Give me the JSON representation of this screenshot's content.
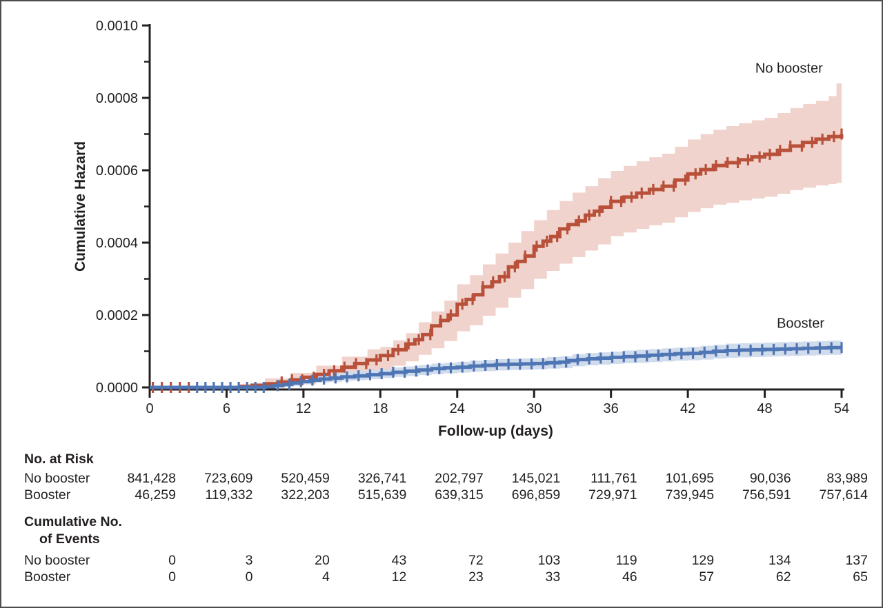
{
  "figure": {
    "background_color": "#ffffff",
    "border_color": "#4d4d4d",
    "text_color": "#231f20"
  },
  "chart_data": {
    "type": "line",
    "subtype": "step-cumulative-hazard-with-confidence-bands",
    "title": "",
    "xlabel": "Follow-up (days)",
    "ylabel": "Cumulative Hazard",
    "xlim": [
      0,
      54
    ],
    "x_ticks": [
      0,
      6,
      12,
      18,
      24,
      30,
      36,
      42,
      48,
      54
    ],
    "y_unit": "hazard x 1e-6 (axis shown as decimals)",
    "ylim_micro": [
      0,
      1000
    ],
    "y_ticks": [
      {
        "value_micro": 0,
        "label": "0.0000"
      },
      {
        "value_micro": 200,
        "label": "0.0002"
      },
      {
        "value_micro": 400,
        "label": "0.0004"
      },
      {
        "value_micro": 600,
        "label": "0.0006"
      },
      {
        "value_micro": 800,
        "label": "0.0008"
      },
      {
        "value_micro": 1000,
        "label": "0.0010"
      }
    ],
    "y_minor_ticks_micro": [
      100,
      300,
      500,
      700,
      900
    ],
    "grid": false,
    "legend_position": "labels-at-line-ends",
    "series": [
      {
        "name": "No booster",
        "line_color": "#b8503a",
        "band_color": "#f0d3cc",
        "label_anchor": {
          "x_day": 49.9,
          "y_micro": 870
        },
        "points_day_micro": [
          [
            0,
            0
          ],
          [
            7,
            3
          ],
          [
            8,
            6
          ],
          [
            9,
            10
          ],
          [
            10,
            15
          ],
          [
            11,
            21
          ],
          [
            12,
            28
          ],
          [
            13,
            36
          ],
          [
            14,
            46
          ],
          [
            15,
            56
          ],
          [
            16,
            66
          ],
          [
            17,
            76
          ],
          [
            18,
            88
          ],
          [
            19,
            104
          ],
          [
            20,
            120
          ],
          [
            20.7,
            132
          ],
          [
            21.3,
            146
          ],
          [
            22,
            170
          ],
          [
            22.7,
            185
          ],
          [
            23.3,
            200
          ],
          [
            24,
            230
          ],
          [
            24.7,
            243
          ],
          [
            25.3,
            256
          ],
          [
            26,
            278
          ],
          [
            26.7,
            292
          ],
          [
            27.3,
            306
          ],
          [
            28,
            333
          ],
          [
            28.7,
            348
          ],
          [
            29.3,
            363
          ],
          [
            30,
            390
          ],
          [
            30.7,
            404
          ],
          [
            31.3,
            417
          ],
          [
            32,
            438
          ],
          [
            32.7,
            450
          ],
          [
            33.3,
            460
          ],
          [
            34,
            476
          ],
          [
            34.7,
            487
          ],
          [
            35.3,
            498
          ],
          [
            36,
            514
          ],
          [
            37,
            526
          ],
          [
            38,
            537
          ],
          [
            39,
            547
          ],
          [
            40,
            556
          ],
          [
            41,
            573
          ],
          [
            42,
            590
          ],
          [
            43,
            602
          ],
          [
            44,
            613
          ],
          [
            45,
            621
          ],
          [
            46,
            629
          ],
          [
            47,
            637
          ],
          [
            48,
            644
          ],
          [
            49,
            655
          ],
          [
            50,
            667
          ],
          [
            51,
            677
          ],
          [
            52,
            686
          ],
          [
            53,
            693
          ],
          [
            54,
            700
          ]
        ],
        "band_day_lo_hi_micro": [
          [
            9,
            2,
            25
          ],
          [
            11,
            8,
            40
          ],
          [
            13,
            18,
            60
          ],
          [
            15,
            30,
            85
          ],
          [
            17,
            42,
            105
          ],
          [
            18,
            50,
            112
          ],
          [
            19,
            60,
            130
          ],
          [
            20,
            72,
            150
          ],
          [
            21,
            90,
            180
          ],
          [
            22,
            108,
            210
          ],
          [
            23,
            128,
            240
          ],
          [
            24,
            155,
            285
          ],
          [
            25,
            172,
            310
          ],
          [
            26,
            198,
            340
          ],
          [
            27,
            220,
            370
          ],
          [
            28,
            248,
            400
          ],
          [
            29,
            272,
            432
          ],
          [
            30,
            300,
            462
          ],
          [
            31,
            322,
            490
          ],
          [
            32,
            342,
            515
          ],
          [
            33,
            360,
            538
          ],
          [
            34,
            378,
            556
          ],
          [
            35,
            395,
            578
          ],
          [
            36,
            418,
            598
          ],
          [
            37,
            428,
            612
          ],
          [
            38,
            438,
            625
          ],
          [
            39,
            448,
            636
          ],
          [
            40,
            455,
            646
          ],
          [
            41,
            470,
            665
          ],
          [
            42,
            485,
            685
          ],
          [
            43,
            495,
            700
          ],
          [
            44,
            505,
            712
          ],
          [
            45,
            510,
            722
          ],
          [
            46,
            517,
            730
          ],
          [
            47,
            522,
            738
          ],
          [
            48,
            527,
            745
          ],
          [
            49,
            535,
            758
          ],
          [
            50,
            545,
            772
          ],
          [
            51,
            552,
            783
          ],
          [
            52,
            558,
            792
          ],
          [
            53,
            562,
            805
          ],
          [
            53.6,
            565,
            840
          ],
          [
            54,
            565,
            840
          ]
        ],
        "baseline_censor_days": [
          0.25,
          0.95,
          1.65,
          2.35,
          3.05
        ],
        "censor_days": [
          10.3,
          11.1,
          11.9,
          12.8,
          13.6,
          14.4,
          15.2,
          16.1,
          16.9,
          17.7,
          18.6,
          19.4,
          20.2,
          21,
          21.9,
          22.7,
          23.5,
          24.4,
          25.2,
          26,
          26.8,
          27.7,
          28.5,
          29.3,
          30.2,
          31,
          31.8,
          32.6,
          33.5,
          34.3,
          35.1,
          36,
          36.8,
          37.6,
          38.4,
          39.3,
          40.1,
          40.9,
          41.8,
          42.6,
          43.4,
          44.2,
          45.1,
          45.9,
          46.7,
          47.6,
          48.4,
          49.2,
          50,
          50.9,
          51.7,
          52.5,
          53.4,
          54
        ]
      },
      {
        "name": "Booster",
        "line_color": "#4f76b4",
        "band_color": "#d0dbec",
        "label_anchor": {
          "x_day": 50.8,
          "y_micro": 165
        },
        "points_day_micro": [
          [
            0,
            0
          ],
          [
            9,
            2
          ],
          [
            9.7,
            5
          ],
          [
            10.4,
            8
          ],
          [
            11.1,
            12
          ],
          [
            11.8,
            16
          ],
          [
            12.5,
            20
          ],
          [
            13.3,
            23
          ],
          [
            14.1,
            26
          ],
          [
            15,
            29
          ],
          [
            16,
            32
          ],
          [
            17,
            35
          ],
          [
            18,
            38
          ],
          [
            19,
            42
          ],
          [
            20,
            45
          ],
          [
            21,
            48
          ],
          [
            22,
            52
          ],
          [
            23,
            54
          ],
          [
            24,
            56
          ],
          [
            25,
            59
          ],
          [
            26,
            61
          ],
          [
            27,
            63
          ],
          [
            28,
            64
          ],
          [
            29,
            65
          ],
          [
            30,
            66
          ],
          [
            31,
            68
          ],
          [
            32,
            70
          ],
          [
            32.7,
            74
          ],
          [
            33.4,
            77
          ],
          [
            34.2,
            79
          ],
          [
            35,
            81
          ],
          [
            36,
            83
          ],
          [
            37,
            85
          ],
          [
            38,
            87
          ],
          [
            39,
            89
          ],
          [
            40,
            91
          ],
          [
            41,
            93
          ],
          [
            42,
            94
          ],
          [
            43,
            97
          ],
          [
            44,
            100
          ],
          [
            45,
            102
          ],
          [
            46,
            103
          ],
          [
            47,
            104
          ],
          [
            48,
            105
          ],
          [
            49,
            106
          ],
          [
            50,
            107
          ],
          [
            51,
            108
          ],
          [
            52,
            109
          ],
          [
            53,
            110
          ],
          [
            54,
            110
          ]
        ],
        "band_day_lo_hi_micro": [
          [
            9,
            0,
            10
          ],
          [
            10,
            2,
            16
          ],
          [
            11,
            5,
            22
          ],
          [
            12,
            10,
            31
          ],
          [
            13,
            13,
            35
          ],
          [
            14,
            15,
            38
          ],
          [
            15,
            18,
            42
          ],
          [
            16,
            20,
            45
          ],
          [
            17,
            23,
            48
          ],
          [
            18,
            26,
            51
          ],
          [
            19,
            29,
            55
          ],
          [
            20,
            31,
            58
          ],
          [
            21,
            34,
            62
          ],
          [
            22,
            37,
            66
          ],
          [
            23,
            39,
            68
          ],
          [
            24,
            41,
            71
          ],
          [
            25,
            43,
            74
          ],
          [
            26,
            45,
            76
          ],
          [
            27,
            47,
            78
          ],
          [
            28,
            48,
            79
          ],
          [
            29,
            49,
            80
          ],
          [
            30,
            50,
            81
          ],
          [
            31,
            52,
            84
          ],
          [
            32,
            53,
            86
          ],
          [
            33,
            58,
            92
          ],
          [
            34,
            61,
            95
          ],
          [
            35,
            63,
            97
          ],
          [
            36,
            65,
            99
          ],
          [
            37,
            67,
            102
          ],
          [
            38,
            68,
            104
          ],
          [
            39,
            70,
            106
          ],
          [
            40,
            72,
            108
          ],
          [
            41,
            74,
            110
          ],
          [
            42,
            75,
            112
          ],
          [
            43,
            77,
            115
          ],
          [
            44,
            80,
            118
          ],
          [
            45,
            82,
            121
          ],
          [
            46,
            83,
            122
          ],
          [
            47,
            84,
            123
          ],
          [
            48,
            85,
            124
          ],
          [
            49,
            86,
            125
          ],
          [
            50,
            87,
            126
          ],
          [
            51,
            88,
            127
          ],
          [
            52,
            89,
            128
          ],
          [
            53,
            90,
            129
          ],
          [
            54,
            90,
            130
          ]
        ],
        "baseline_censor_days": [
          3.7,
          4.35,
          5,
          5.65,
          6.3,
          6.95,
          7.6,
          8.25,
          8.9
        ],
        "censor_days": [
          10,
          10.9,
          11.8,
          12.7,
          13.6,
          14.5,
          15.4,
          16.3,
          17.2,
          18.1,
          19,
          19.9,
          20.8,
          21.7,
          22.6,
          23.5,
          24.4,
          25.3,
          26.2,
          27.1,
          28,
          28.9,
          29.8,
          30.7,
          31.6,
          32.5,
          33.4,
          34.3,
          35.2,
          36.1,
          37,
          37.9,
          38.8,
          39.7,
          40.6,
          41.5,
          42.4,
          43.3,
          44.2,
          45.1,
          46,
          46.9,
          47.8,
          48.7,
          49.6,
          50.5,
          51.4,
          52.3,
          53.2,
          54
        ]
      }
    ]
  },
  "risk_table": {
    "title": "No. at Risk",
    "rows": [
      {
        "label": "No booster",
        "values": [
          "841,428",
          "723,609",
          "520,459",
          "326,741",
          "202,797",
          "145,021",
          "111,761",
          "101,695",
          "90,036",
          "83,989"
        ]
      },
      {
        "label": "Booster",
        "values": [
          "46,259",
          "119,332",
          "322,203",
          "515,639",
          "639,315",
          "696,859",
          "729,971",
          "739,945",
          "756,591",
          "757,614"
        ]
      }
    ]
  },
  "events_table": {
    "title_line1": "Cumulative No.",
    "title_line2": "of Events",
    "rows": [
      {
        "label": "No booster",
        "values": [
          "0",
          "3",
          "20",
          "43",
          "72",
          "103",
          "119",
          "129",
          "134",
          "137"
        ]
      },
      {
        "label": "Booster",
        "values": [
          "0",
          "0",
          "4",
          "12",
          "23",
          "33",
          "46",
          "57",
          "62",
          "65"
        ]
      }
    ]
  }
}
